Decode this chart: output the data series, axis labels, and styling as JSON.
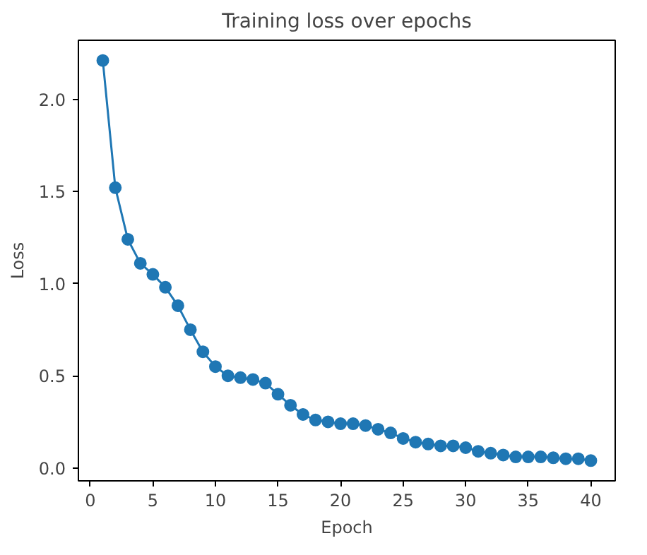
{
  "chart_data": {
    "type": "line",
    "title": "Training loss over epochs",
    "xlabel": "Epoch",
    "ylabel": "Loss",
    "x": [
      1,
      2,
      3,
      4,
      5,
      6,
      7,
      8,
      9,
      10,
      11,
      12,
      13,
      14,
      15,
      16,
      17,
      18,
      19,
      20,
      21,
      22,
      23,
      24,
      25,
      26,
      27,
      28,
      29,
      30,
      31,
      32,
      33,
      34,
      35,
      36,
      37,
      38,
      39,
      40
    ],
    "series": [
      {
        "color": "#1f77b4",
        "values": [
          2.21,
          1.52,
          1.24,
          1.11,
          1.05,
          0.98,
          0.88,
          0.75,
          0.63,
          0.55,
          0.5,
          0.49,
          0.48,
          0.46,
          0.4,
          0.34,
          0.29,
          0.26,
          0.25,
          0.24,
          0.24,
          0.23,
          0.21,
          0.19,
          0.16,
          0.14,
          0.13,
          0.12,
          0.12,
          0.11,
          0.09,
          0.08,
          0.07,
          0.06,
          0.06,
          0.06,
          0.055,
          0.05,
          0.05,
          0.04
        ]
      }
    ],
    "xlim": [
      -0.95,
      41.95
    ],
    "ylim": [
      -0.07,
      2.32
    ],
    "xticks": [
      0,
      5,
      10,
      15,
      20,
      25,
      30,
      35,
      40
    ],
    "yticks": [
      {
        "value": 0,
        "label": "0.0"
      },
      {
        "value": 0.5,
        "label": "0.5"
      },
      {
        "value": 1,
        "label": "1.0"
      },
      {
        "value": 1.5,
        "label": "1.5"
      },
      {
        "value": 2,
        "label": "2.0"
      }
    ],
    "grid": false,
    "marker": "circle",
    "line_style": "solid"
  }
}
